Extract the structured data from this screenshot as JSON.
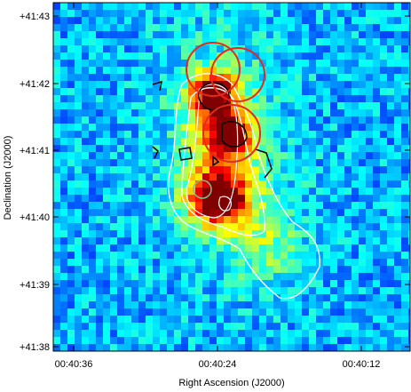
{
  "axes": {
    "x_label": "Right Ascension (J2000)",
    "y_label": "Declination (J2000)",
    "x_ticks": [
      "00:40:36",
      "00:40:24",
      "00:40:12"
    ],
    "y_ticks": [
      "+41:43",
      "+41:42",
      "+41:41",
      "+41:40",
      "+41:39",
      "+41:38"
    ]
  }
}
